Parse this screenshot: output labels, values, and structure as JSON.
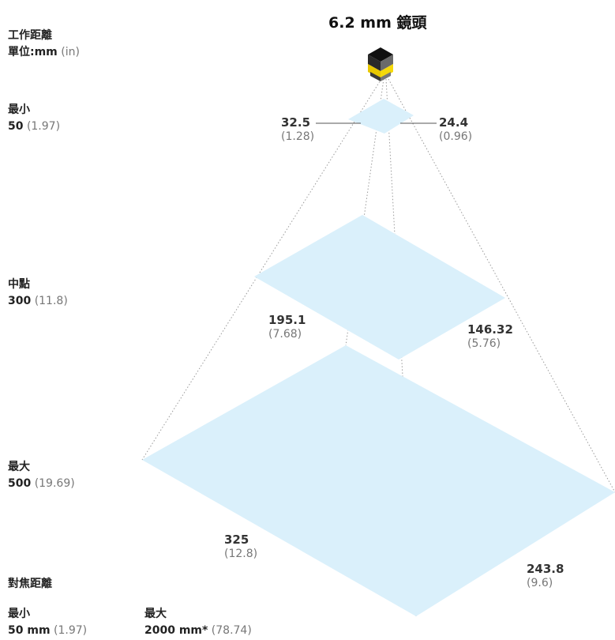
{
  "lens": {
    "title": "6.2 mm 鏡頭"
  },
  "legend": {
    "working_distance_title": "工作距離",
    "unit_label": "單位:mm",
    "unit_alt": "(in)"
  },
  "levels": {
    "min": {
      "label": "最小",
      "value": "50",
      "value_alt": "(1.97)"
    },
    "mid": {
      "label": "中點",
      "value": "300",
      "value_alt": "(11.8)"
    },
    "max": {
      "label": "最大",
      "value": "500",
      "value_alt": "(19.69)"
    }
  },
  "dimensions": {
    "min_width": {
      "value": "32.5",
      "alt": "(1.28)"
    },
    "min_height": {
      "value": "24.4",
      "alt": "(0.96)"
    },
    "mid_width": {
      "value": "195.1",
      "alt": "(7.68)"
    },
    "mid_height": {
      "value": "146.32",
      "alt": "(5.76)"
    },
    "max_width": {
      "value": "325",
      "alt": "(12.8)"
    },
    "max_height": {
      "value": "243.8",
      "alt": "(9.6)"
    }
  },
  "focus": {
    "title": "對焦距離",
    "min_label": "最小",
    "min_value": "50 mm",
    "min_alt": "(1.97)",
    "max_label": "最大",
    "max_value": "2000 mm*",
    "max_alt": "(78.74)"
  },
  "colors": {
    "field": "#daf0fb",
    "camera_top": "#111111",
    "camera_side": "#6a6a6a",
    "lens_yellow": "#f5d90a",
    "lines": "#999999"
  }
}
